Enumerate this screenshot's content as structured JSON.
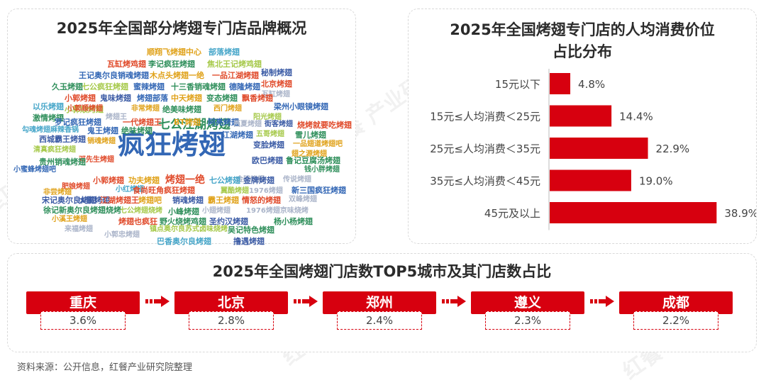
{
  "wordcloud": {
    "title": "2025年全国部分烤翅专门店品牌概况",
    "words": [
      {
        "text": "疯狂烤翅",
        "color": "#3367b5"
      },
      {
        "text": "七公江湖烤翅",
        "color": "#2f8f5b"
      },
      {
        "text": "顺翔飞烤翅中心",
        "color": "#e0a21a"
      },
      {
        "text": "部落烤翅",
        "color": "#46a6c9"
      },
      {
        "text": "瓦缸烤鸡翅",
        "color": "#e04a2a"
      },
      {
        "text": "李记疯狂烤翅",
        "color": "#2f8f5b"
      },
      {
        "text": "焦北王记烤鸡翅",
        "color": "#a6c94a"
      },
      {
        "text": "王记奥尔良销魂烤翅",
        "color": "#3367b5"
      },
      {
        "text": "木点头烤翅一绝",
        "color": "#e0a21a"
      },
      {
        "text": "一品江湖烤翅",
        "color": "#e04a2a"
      },
      {
        "text": "秘制烤翅",
        "color": "#3b5ba5"
      },
      {
        "text": "北京烤翅",
        "color": "#e04a2a"
      },
      {
        "text": "久玉烤翅",
        "color": "#2f8f5b"
      },
      {
        "text": "七公疯狂烤翅",
        "color": "#a6c94a"
      },
      {
        "text": "蜜辣烤翅",
        "color": "#3367b5"
      },
      {
        "text": "十三香销魂烤翅",
        "color": "#2f8f5b"
      },
      {
        "text": "德隆烤翅",
        "color": "#3367b5"
      },
      {
        "text": "瓦缸烤翅",
        "color": "#aab4c9"
      },
      {
        "text": "小郭烤翅",
        "color": "#e04a2a"
      },
      {
        "text": "鬼味烤翅",
        "color": "#3b5ba5"
      },
      {
        "text": "烤翅部落",
        "color": "#3367b5"
      },
      {
        "text": "中天烤翅",
        "color": "#e0a21a"
      },
      {
        "text": "变态烤翅",
        "color": "#2f8f5b"
      },
      {
        "text": "飘香烤翅",
        "color": "#e04a2a"
      },
      {
        "text": "以乐烤翅",
        "color": "#46a6c9"
      },
      {
        "text": "小郭顺烤翅",
        "color": "#a6c94a"
      },
      {
        "text": "梁州小眼镜烤翅",
        "color": "#3367b5"
      },
      {
        "text": "激情烤翅",
        "color": "#2f8f5b"
      },
      {
        "text": "小郭顺烤翅",
        "color": "#e04a2a"
      },
      {
        "text": "烤翅王",
        "color": "#aab4c9"
      },
      {
        "text": "非常烤翅",
        "color": "#e0a21a"
      },
      {
        "text": "绝美味烤翅",
        "color": "#2f8f5b"
      },
      {
        "text": "西门烤翅",
        "color": "#e0a21a"
      },
      {
        "text": "阳光烤翅",
        "color": "#a6c94a"
      },
      {
        "text": "罗记疯狂烤翅",
        "color": "#3367b5"
      },
      {
        "text": "一代烤翅王",
        "color": "#e04a2a"
      },
      {
        "text": "BT烤翅",
        "color": "#e0a21a"
      },
      {
        "text": "阿亮烤翅",
        "color": "#3367b5"
      },
      {
        "text": "西夏烤翅",
        "color": "#aab4c9"
      },
      {
        "text": "街客烤翅",
        "color": "#3b5ba5"
      },
      {
        "text": "烧烤就要吃烤翅",
        "color": "#e04a2a"
      },
      {
        "text": "勾魂烤翅麻辣香锅",
        "color": "#46a6c9"
      },
      {
        "text": "鬼王烤翅",
        "color": "#3367b5"
      },
      {
        "text": "绝味烤翅",
        "color": "#2f8f5b"
      },
      {
        "text": "五哥烤翅",
        "color": "#a6c94a"
      },
      {
        "text": "雪儿烤翅",
        "color": "#2f8f5b"
      },
      {
        "text": "西城霸王烤翅",
        "color": "#3b5ba5"
      },
      {
        "text": "江湖烤翅",
        "color": "#3367b5"
      },
      {
        "text": "一品翅道烤翅吧",
        "color": "#e0a21a"
      },
      {
        "text": "清真疯狂烤翅",
        "color": "#a6c94a"
      },
      {
        "text": "销魂烤翅",
        "color": "#e0a21a"
      },
      {
        "text": "变脸烤翅",
        "color": "#3b5ba5"
      },
      {
        "text": "翅之源烤翅",
        "color": "#e0a21a"
      },
      {
        "text": "邓先生烤翅",
        "color": "#e04a2a"
      },
      {
        "text": "贵州销魂烤翅",
        "color": "#2f8f5b"
      },
      {
        "text": "欧巴烤翅",
        "color": "#3b5ba5"
      },
      {
        "text": "鲁记豆腐汤烤翅",
        "color": "#2f8f5b"
      },
      {
        "text": "小蜜蜂烤翅吧",
        "color": "#3367b5"
      },
      {
        "text": "金牌烤翅",
        "color": "#aab4c9"
      },
      {
        "text": "钱小胖烤翅",
        "color": "#2f8f5b"
      },
      {
        "text": "小郭烤翅",
        "color": "#e04a2a"
      },
      {
        "text": "功夫烤翅",
        "color": "#e0a21a"
      },
      {
        "text": "烤翅一绝",
        "color": "#e04a2a"
      },
      {
        "text": "七公烤翅",
        "color": "#46a6c9"
      },
      {
        "text": "金牌烤翅",
        "color": "#3b5ba5"
      },
      {
        "text": "传说烤翅",
        "color": "#aab4c9"
      },
      {
        "text": "肥娘烤翅",
        "color": "#e04a2a"
      },
      {
        "text": "非尝烤翅",
        "color": "#e0a21a"
      },
      {
        "text": "大鹏烤翅",
        "color": "#3b5ba5"
      },
      {
        "text": "小红烤翅",
        "color": "#46a6c9"
      },
      {
        "text": "食尚旺角疯狂烤翅",
        "color": "#e04a2a"
      },
      {
        "text": "翼酷烤翅",
        "color": "#a6c94a"
      },
      {
        "text": "1976烤翅",
        "color": "#aab4c9"
      },
      {
        "text": "新三国疯狂烤翅",
        "color": "#3367b5"
      },
      {
        "text": "宋记奥尔良烤翅",
        "color": "#3b5ba5"
      },
      {
        "text": "江湖烤翅王",
        "color": "#e04a2a"
      },
      {
        "text": "烤翅吧",
        "color": "#e0a21a"
      },
      {
        "text": "销魂烤翅",
        "color": "#3b5ba5"
      },
      {
        "text": "霸王烤翅",
        "color": "#e0a21a"
      },
      {
        "text": "情怒的烤翅",
        "color": "#e04a2a"
      },
      {
        "text": "双峰烤翅",
        "color": "#aab4c9"
      },
      {
        "text": "徐记新奥尔良烤翅烧烤",
        "color": "#2f8f5b"
      },
      {
        "text": "七公烤翅烧烤",
        "color": "#a6c94a"
      },
      {
        "text": "小峰烤翅",
        "color": "#2f8f5b"
      },
      {
        "text": "小翅烤翅",
        "color": "#aab4c9"
      },
      {
        "text": "1976烤翅京味烧烤",
        "color": "#aab4c9"
      },
      {
        "text": "小溪王烤翅",
        "color": "#e0a21a"
      },
      {
        "text": "烤翅也疯狂",
        "color": "#e04a2a"
      },
      {
        "text": "野火烧烤鸡翅",
        "color": "#2f8f5b"
      },
      {
        "text": "圣约汉烤翅",
        "color": "#3b5ba5"
      },
      {
        "text": "杨小杨烤翅",
        "color": "#2f8f5b"
      },
      {
        "text": "来福烤翅",
        "color": "#aab4c9"
      },
      {
        "text": "镇点奥尔良苏式卤味烧烤",
        "color": "#a6c94a"
      },
      {
        "text": "吴记特色烤翅",
        "color": "#2f8f5b"
      },
      {
        "text": "小郭忠烤翅",
        "color": "#aab4c9"
      },
      {
        "text": "巴香奥尔良烤翅",
        "color": "#46a6c9"
      },
      {
        "text": "撸遇烤翅",
        "color": "#3b5ba5"
      }
    ]
  },
  "chart_data": {
    "type": "bar",
    "title": "2025年全国烤翅专门店的人均消费价位占比分布",
    "title_lines": [
      "2025年全国烤翅专门店的人均消费价位",
      "占比分布"
    ],
    "orientation": "horizontal",
    "categories": [
      "15元以下",
      "15元≤人均消费＜25元",
      "25元≤人均消费＜35元",
      "35元≤人均消费＜45元",
      "45元及以上"
    ],
    "values": [
      4.8,
      14.4,
      22.9,
      19.0,
      38.9
    ],
    "value_labels": [
      "4.8%",
      "14.4%",
      "22.9%",
      "19.0%",
      "38.9%"
    ],
    "unit": "%",
    "xlim": [
      0,
      40
    ],
    "grid": false,
    "color": "#d7000f"
  },
  "cities": {
    "title": "2025年全国烤翅门店数TOP5城市及其门店数占比",
    "items": [
      {
        "name": "重庆",
        "share": "3.6%"
      },
      {
        "name": "北京",
        "share": "2.8%"
      },
      {
        "name": "郑州",
        "share": "2.4%"
      },
      {
        "name": "遵义",
        "share": "2.3%"
      },
      {
        "name": "成都",
        "share": "2.2%"
      }
    ]
  },
  "source": "资料来源：公开信息，红餐产业研究院整理",
  "watermark": "红餐 产业研究院",
  "colors": {
    "accent": "#d7000f",
    "title": "#2b2b2b",
    "border": "#d9d9d9"
  }
}
